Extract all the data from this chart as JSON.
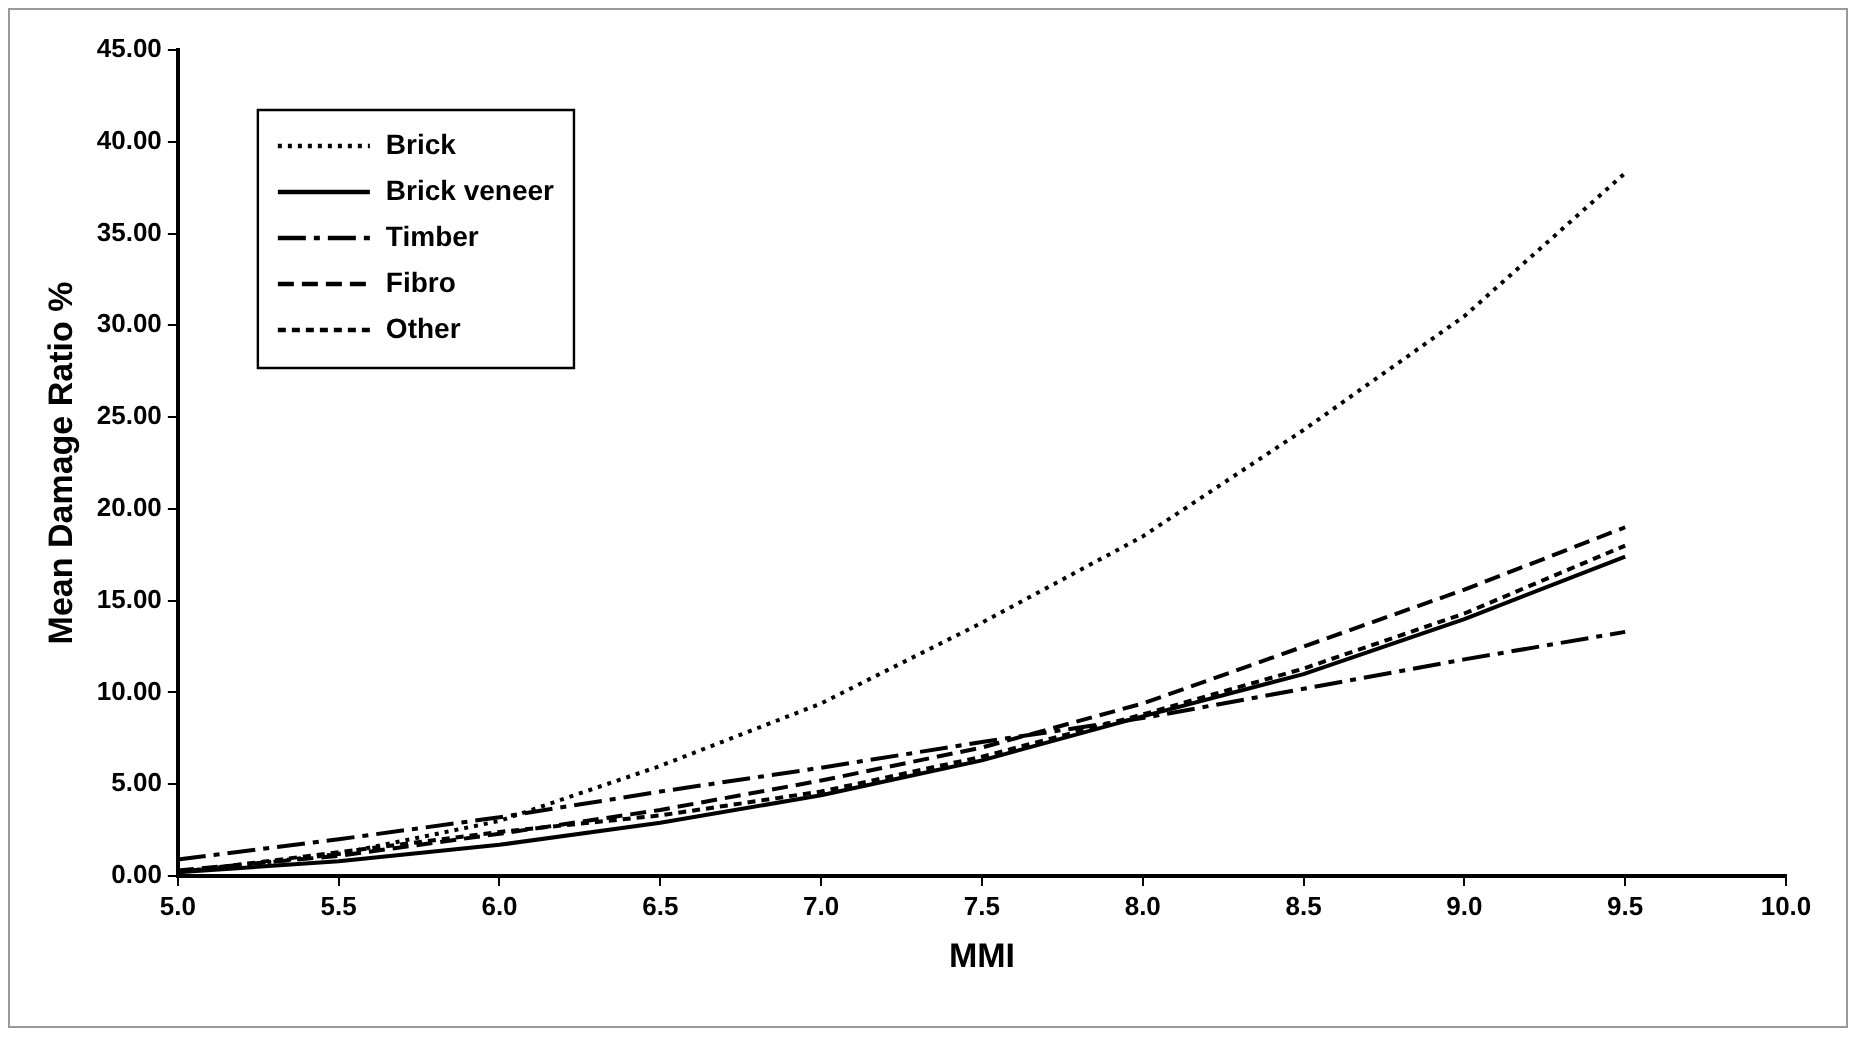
{
  "chart_data": {
    "type": "line",
    "xlabel": "MMI",
    "ylabel": "Mean Damage Ratio %",
    "x": [
      5.0,
      5.5,
      6.0,
      6.5,
      7.0,
      7.5,
      8.0,
      8.5,
      9.0,
      9.5
    ],
    "series": [
      {
        "name": "Brick",
        "color": "#000000",
        "line_style": "dotted",
        "values": [
          0.2,
          1.2,
          3.0,
          6.0,
          9.4,
          13.8,
          18.5,
          24.3,
          30.5,
          38.3
        ]
      },
      {
        "name": "Brick veneer",
        "color": "#000000",
        "line_style": "solid",
        "values": [
          0.2,
          0.8,
          1.7,
          2.9,
          4.4,
          6.3,
          8.7,
          11.0,
          14.0,
          17.4
        ]
      },
      {
        "name": "Timber",
        "color": "#000000",
        "line_style": "dashdot",
        "values": [
          0.9,
          2.0,
          3.2,
          4.6,
          5.9,
          7.3,
          8.6,
          10.2,
          11.8,
          13.3
        ]
      },
      {
        "name": "Fibro",
        "color": "#000000",
        "line_style": "dashed",
        "values": [
          0.3,
          1.1,
          2.3,
          3.6,
          5.2,
          7.0,
          9.4,
          12.5,
          15.6,
          19.0
        ]
      },
      {
        "name": "Other",
        "color": "#000000",
        "line_style": "shortdash",
        "values": [
          0.2,
          1.3,
          2.4,
          3.3,
          4.6,
          6.5,
          8.8,
          11.3,
          14.3,
          18.0
        ]
      }
    ],
    "xlim": [
      5.0,
      10.0
    ],
    "xticks": [
      {
        "value": 5,
        "label": "5.0"
      },
      {
        "value": 5.5,
        "label": "5.5"
      },
      {
        "value": 6,
        "label": "6.0"
      },
      {
        "value": 6.5,
        "label": "6.5"
      },
      {
        "value": 7,
        "label": "7.0"
      },
      {
        "value": 7.5,
        "label": "7.5"
      },
      {
        "value": 8,
        "label": "8.0"
      },
      {
        "value": 8.5,
        "label": "8.5"
      },
      {
        "value": 9,
        "label": "9.0"
      },
      {
        "value": 9.5,
        "label": "9.5"
      },
      {
        "value": 10,
        "label": "10.0"
      }
    ],
    "ylim": [
      0,
      45
    ],
    "yticks": [
      {
        "value": 0,
        "label": "0.00"
      },
      {
        "value": 5,
        "label": "5.00"
      },
      {
        "value": 10,
        "label": "10.00"
      },
      {
        "value": 15,
        "label": "15.00"
      },
      {
        "value": 20,
        "label": "20.00"
      },
      {
        "value": 25,
        "label": "25.00"
      },
      {
        "value": 30,
        "label": "30.00"
      },
      {
        "value": 35,
        "label": "35.00"
      },
      {
        "value": 40,
        "label": "40.00"
      },
      {
        "value": 45,
        "label": "45.00"
      }
    ],
    "grid": false,
    "legend": "top left",
    "marker": "none"
  }
}
